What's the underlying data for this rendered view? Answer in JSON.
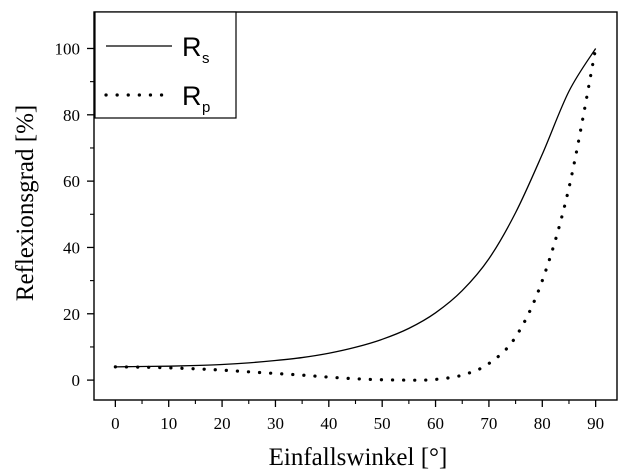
{
  "chart_data": {
    "type": "line",
    "title": "",
    "xlabel": "Einfallswinkel [°]",
    "ylabel": "Reflexionsgrad [%]",
    "xlim": [
      -4,
      94
    ],
    "ylim": [
      -6,
      111
    ],
    "xticks": [
      0,
      10,
      20,
      30,
      40,
      50,
      60,
      70,
      80,
      90
    ],
    "yticks": [
      0,
      20,
      40,
      60,
      80,
      100
    ],
    "grid": false,
    "legend_position": "top-left",
    "series": [
      {
        "name": "R",
        "name_subscript": "s",
        "style": "solid",
        "color": "#000000",
        "x": [
          0,
          5,
          10,
          15,
          20,
          25,
          30,
          35,
          40,
          45,
          50,
          55,
          60,
          65,
          70,
          75,
          80,
          85,
          90
        ],
        "y": [
          4.0,
          4.1,
          4.2,
          4.4,
          4.7,
          5.2,
          5.9,
          6.8,
          8.1,
          9.9,
          12.3,
          15.6,
          20.3,
          27.0,
          36.6,
          50.5,
          68.1,
          87.1,
          100
        ]
      },
      {
        "name": "R",
        "name_subscript": "p",
        "style": "dotted",
        "color": "#000000",
        "x": [
          0,
          5,
          10,
          15,
          20,
          25,
          30,
          35,
          40,
          45,
          50,
          55,
          57,
          60,
          65,
          70,
          75,
          80,
          85,
          90
        ],
        "y": [
          4.0,
          3.9,
          3.7,
          3.4,
          3.0,
          2.5,
          2.0,
          1.5,
          0.9,
          0.4,
          0.1,
          0.0,
          0.0,
          0.2,
          1.5,
          5.0,
          13.0,
          30.0,
          58.0,
          100
        ]
      }
    ]
  }
}
